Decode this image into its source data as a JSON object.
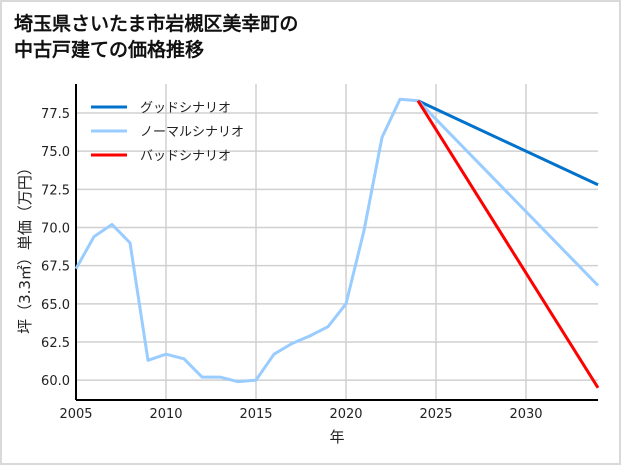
{
  "chart_data": {
    "type": "line",
    "title": "埼玉県さいたま市岩槻区美幸町の\n中古戸建ての価格推移",
    "xlabel": "年",
    "ylabel": "坪（3.3㎡）単価（万円）",
    "xlim": [
      2005,
      2034
    ],
    "ylim": [
      58.7,
      79.4
    ],
    "xticks": [
      2005,
      2010,
      2015,
      2020,
      2025,
      2030
    ],
    "yticks": [
      "60.0",
      "62.5",
      "65.0",
      "67.5",
      "70.0",
      "72.5",
      "75.0",
      "77.5"
    ],
    "grid": true,
    "legend_position": "top-left",
    "history": {
      "color": "#99ccff",
      "x": [
        2005,
        2006,
        2007,
        2008,
        2009,
        2010,
        2011,
        2012,
        2013,
        2014,
        2015,
        2016,
        2017,
        2018,
        2019,
        2020,
        2021,
        2022,
        2023,
        2024
      ],
      "y": [
        67.3,
        69.4,
        70.2,
        69.0,
        61.3,
        61.7,
        61.4,
        60.2,
        60.2,
        59.9,
        60.0,
        61.7,
        62.4,
        62.9,
        63.5,
        65.0,
        69.8,
        75.9,
        78.4,
        78.3
      ]
    },
    "series": [
      {
        "name": "グッドシナリオ",
        "color": "#0072cc",
        "x": [
          2024,
          2034
        ],
        "y": [
          78.3,
          72.8
        ]
      },
      {
        "name": "ノーマルシナリオ",
        "color": "#99ccff",
        "x": [
          2024,
          2034
        ],
        "y": [
          78.3,
          66.2
        ]
      },
      {
        "name": "バッドシナリオ",
        "color": "#ff0000",
        "x": [
          2024,
          2034
        ],
        "y": [
          78.3,
          59.5
        ]
      }
    ]
  }
}
